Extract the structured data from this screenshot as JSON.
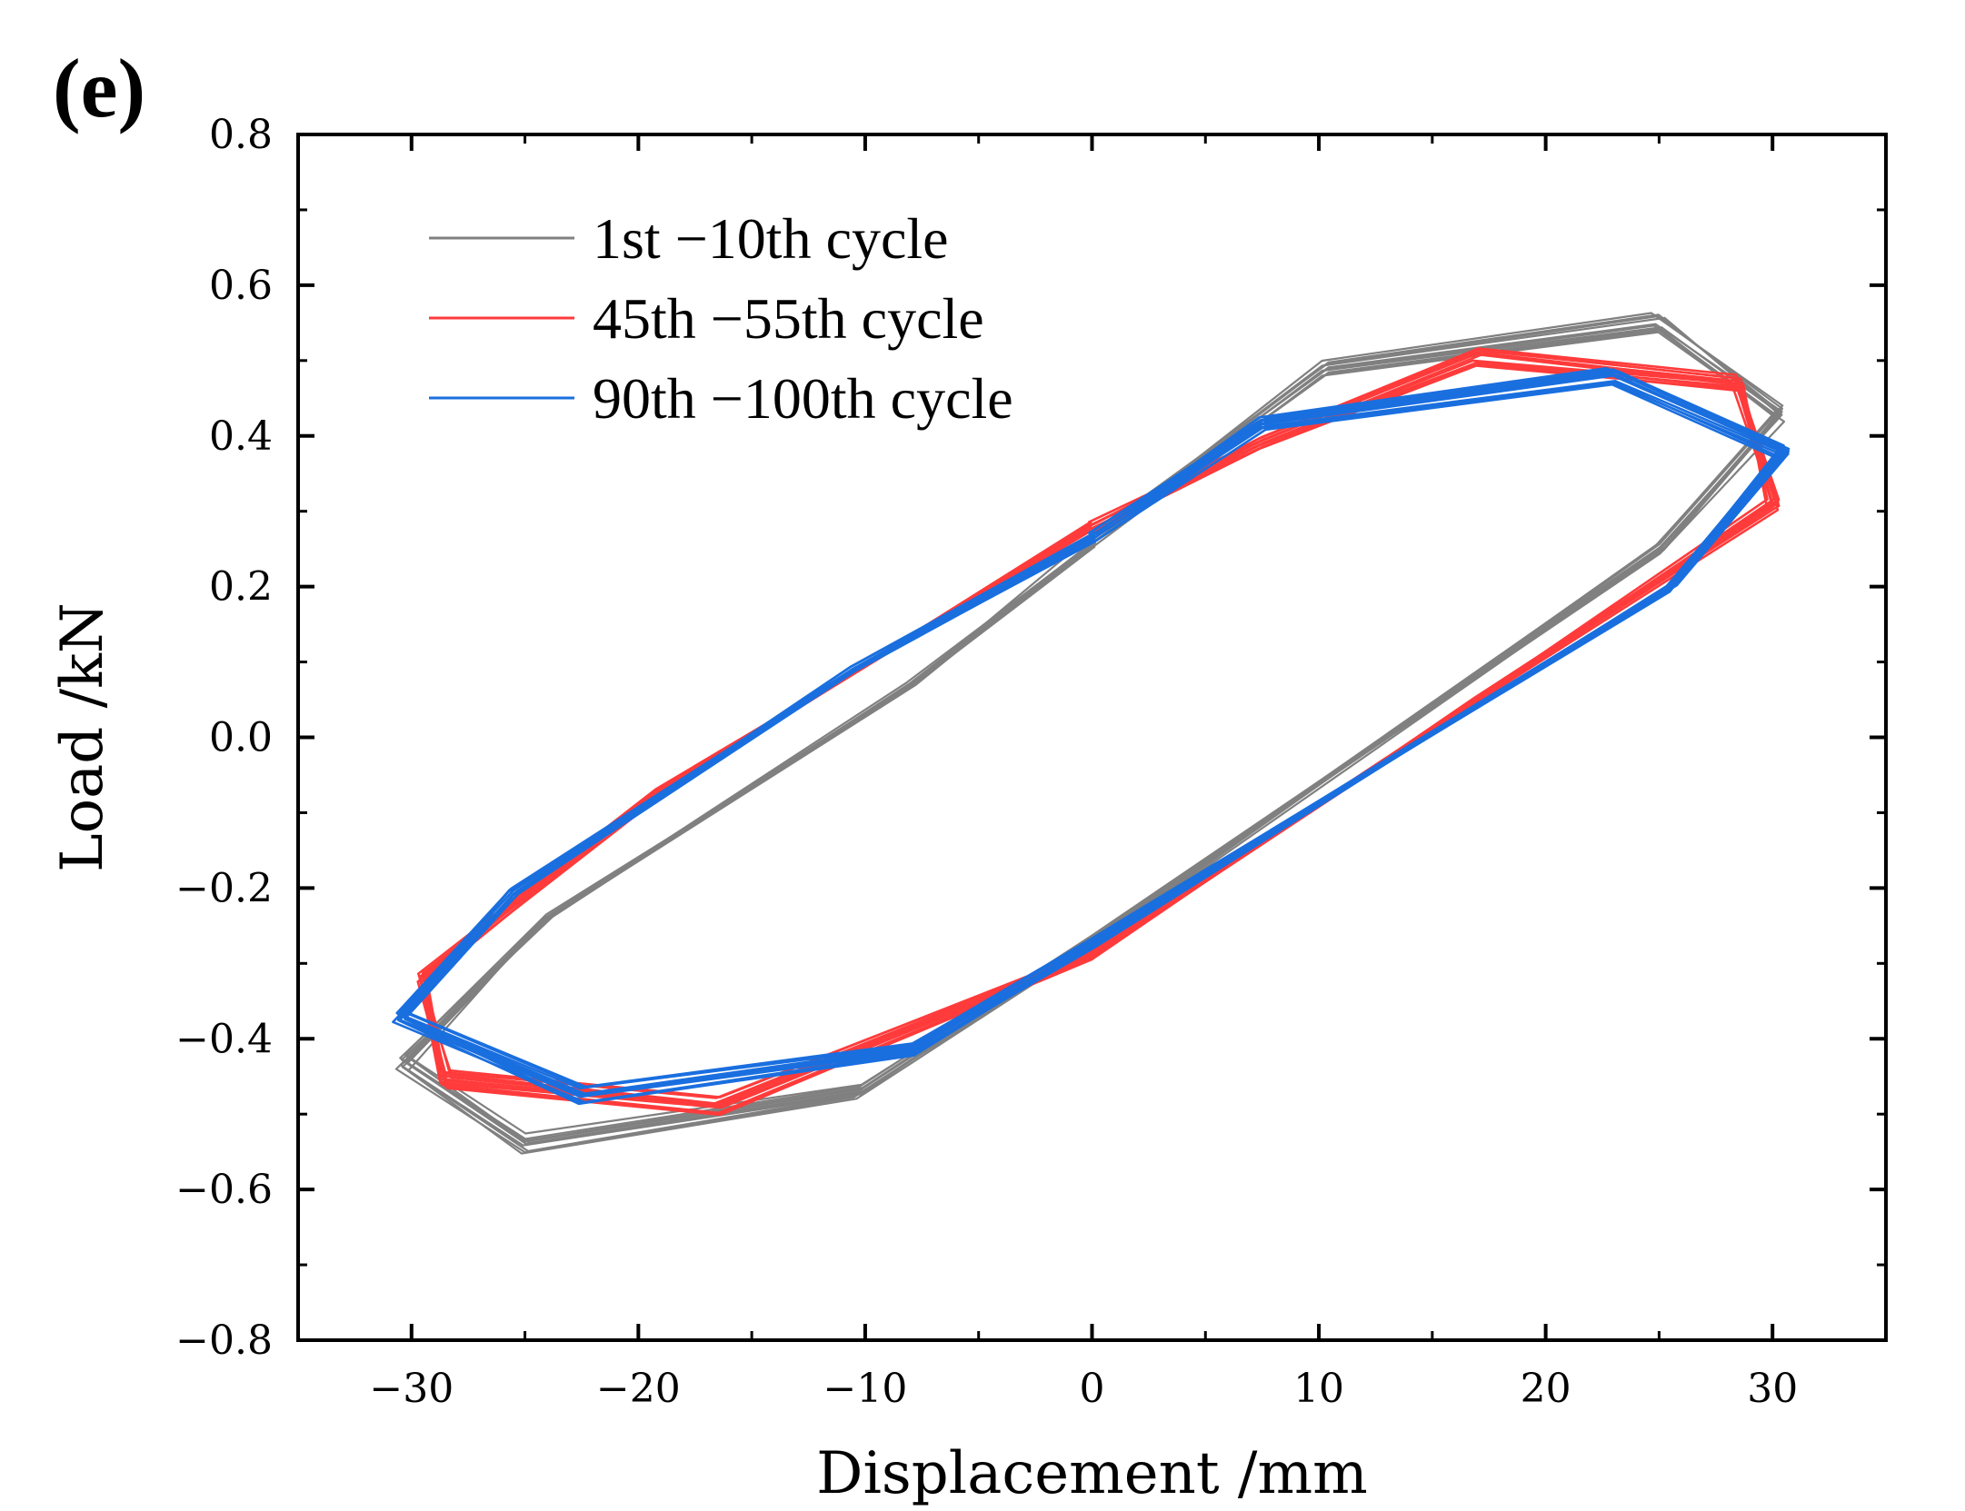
{
  "chart_data": {
    "type": "line",
    "panel_label": "(e)",
    "title": "",
    "xlabel": "Displacement /mm",
    "ylabel": "Load /kN",
    "xlim": [
      -35,
      35
    ],
    "ylim": [
      -0.8,
      0.8
    ],
    "xticks": [
      -30,
      -20,
      -10,
      0,
      10,
      20,
      30
    ],
    "xtick_labels": [
      "−30",
      "−20",
      "−10",
      "0",
      "10",
      "20",
      "30"
    ],
    "yticks": [
      -0.8,
      -0.6,
      -0.4,
      -0.2,
      0.0,
      0.2,
      0.4,
      0.6,
      0.8
    ],
    "ytick_labels": [
      "−0.8",
      "−0.6",
      "−0.4",
      "−0.2",
      "0.0",
      "0.2",
      "0.4",
      "0.6",
      "0.8"
    ],
    "grid": false,
    "legend_position": "top-left",
    "series": [
      {
        "name": "1st −10th cycle",
        "color": "#808080",
        "loop_count": 10,
        "points": [
          [
            0,
            0.26
          ],
          [
            10.3,
            0.49
          ],
          [
            25,
            0.55
          ],
          [
            30.3,
            0.43
          ],
          [
            25,
            0.25
          ],
          [
            0,
            -0.27
          ],
          [
            -10.3,
            -0.47
          ],
          [
            -25,
            -0.54
          ],
          [
            -30.3,
            -0.43
          ],
          [
            -24,
            -0.24
          ],
          [
            -8,
            0.07
          ],
          [
            0,
            0.26
          ]
        ]
      },
      {
        "name": "45th −55th cycle",
        "color": "#ff3b3b",
        "loop_count": 11,
        "points": [
          [
            0,
            0.28
          ],
          [
            7.5,
            0.39
          ],
          [
            17,
            0.505
          ],
          [
            28.5,
            0.47
          ],
          [
            30,
            0.31
          ],
          [
            17,
            0.05
          ],
          [
            0,
            -0.29
          ],
          [
            -16.5,
            -0.49
          ],
          [
            -28.5,
            -0.455
          ],
          [
            -29.5,
            -0.32
          ],
          [
            -19,
            -0.07
          ],
          [
            0,
            0.28
          ]
        ]
      },
      {
        "name": "90th −100th cycle",
        "color": "#1a6fdf",
        "loop_count": 11,
        "points": [
          [
            0,
            0.265
          ],
          [
            7.5,
            0.415
          ],
          [
            23,
            0.48
          ],
          [
            30.5,
            0.38
          ],
          [
            25.5,
            0.2
          ],
          [
            0,
            -0.275
          ],
          [
            -8,
            -0.415
          ],
          [
            -22.5,
            -0.475
          ],
          [
            -30.5,
            -0.37
          ],
          [
            -25.5,
            -0.205
          ],
          [
            -10.5,
            0.09
          ],
          [
            0,
            0.265
          ]
        ]
      }
    ]
  }
}
